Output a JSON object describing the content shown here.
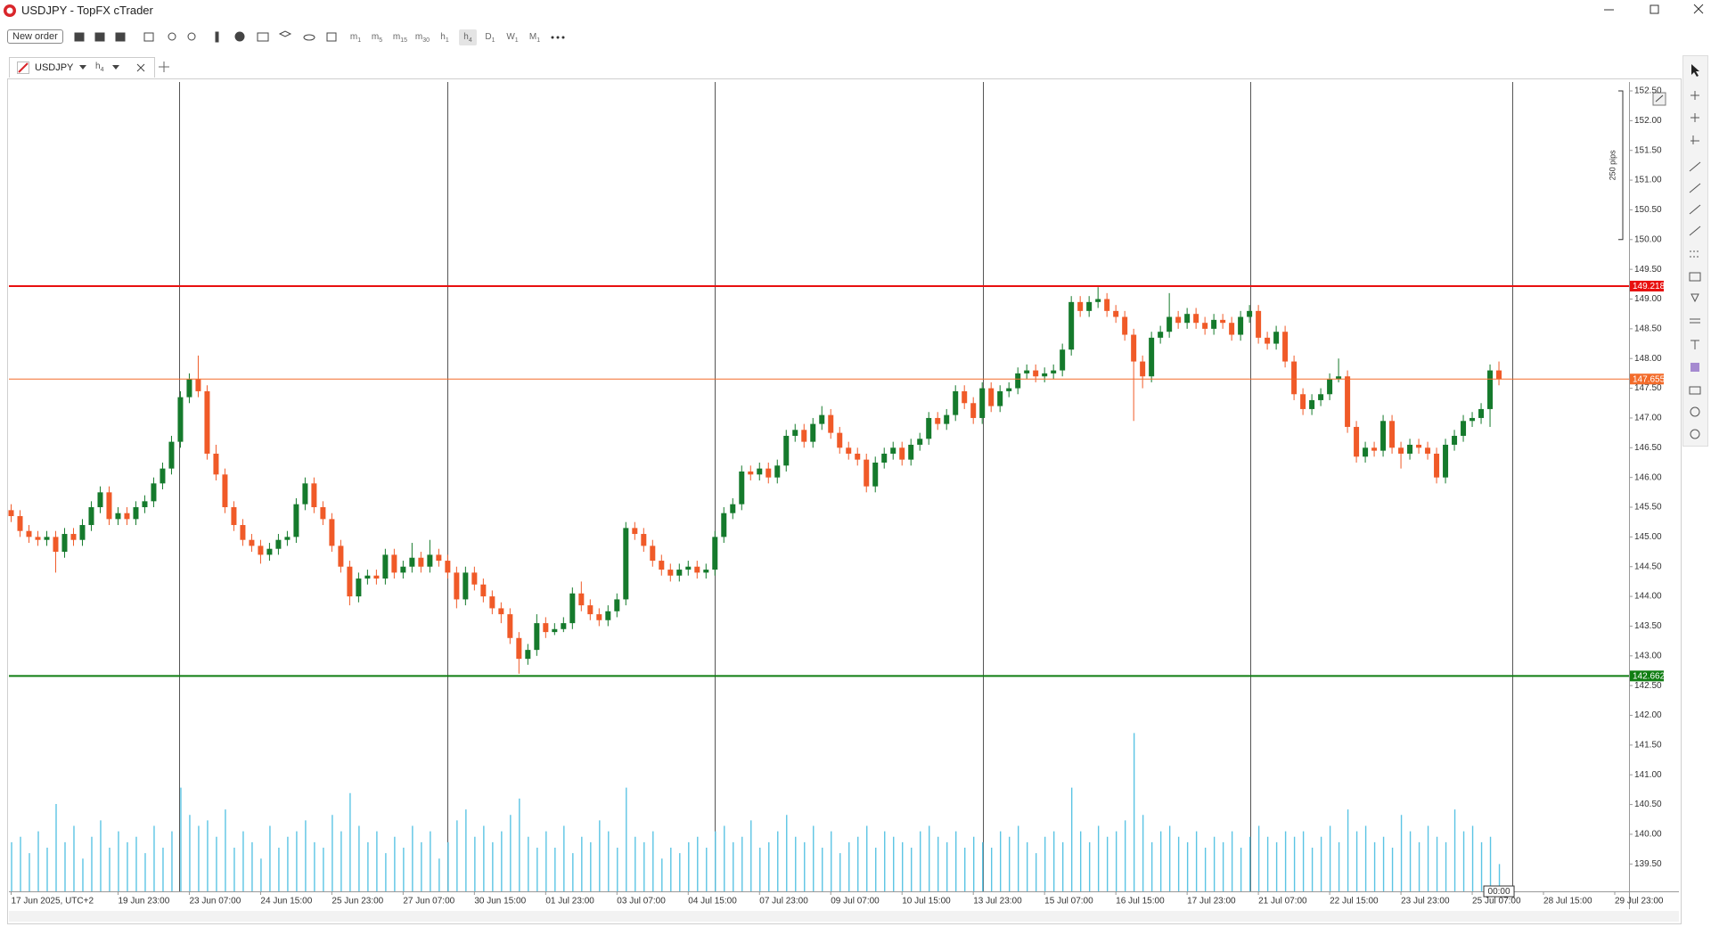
{
  "window": {
    "title": "USDJPY - TopFX cTrader"
  },
  "toolbar": {
    "new_order": "New order",
    "timeframes": [
      {
        "unit": "m",
        "n": "1"
      },
      {
        "unit": "m",
        "n": "5"
      },
      {
        "unit": "m",
        "n": "15"
      },
      {
        "unit": "m",
        "n": "30"
      },
      {
        "unit": "h",
        "n": "1"
      },
      {
        "unit": "h",
        "n": "4"
      },
      {
        "unit": "D",
        "n": "1"
      },
      {
        "unit": "W",
        "n": "1"
      },
      {
        "unit": "M",
        "n": "1"
      }
    ]
  },
  "tab": {
    "symbol": "USDJPY",
    "timeframe": {
      "unit": "h",
      "n": "4"
    }
  },
  "chart_data": {
    "type": "candlestick",
    "bull_color": "#157a2c",
    "bear_color": "#f05a28",
    "volume_color": "#5bc4e4",
    "xlim": [
      -0.25,
      181.6
    ],
    "ylim": [
      139.04,
      152.65
    ],
    "vlim": [
      0,
      160
    ],
    "xticks": [
      {
        "value": 0,
        "label": "17 Jun 2025, UTC+2"
      },
      {
        "value": 12,
        "label": "19 Jun 23:00"
      },
      {
        "value": 20,
        "label": "23 Jun 07:00"
      },
      {
        "value": 28,
        "label": "24 Jun 15:00"
      },
      {
        "value": 36,
        "label": "25 Jun 23:00"
      },
      {
        "value": 44,
        "label": "27 Jun 07:00"
      },
      {
        "value": 52,
        "label": "30 Jun 15:00"
      },
      {
        "value": 60,
        "label": "01 Jul 23:00"
      },
      {
        "value": 68,
        "label": "03 Jul 07:00"
      },
      {
        "value": 76,
        "label": "04 Jul 15:00"
      },
      {
        "value": 84,
        "label": "07 Jul 23:00"
      },
      {
        "value": 92,
        "label": "09 Jul 07:00"
      },
      {
        "value": 100,
        "label": "10 Jul 15:00"
      },
      {
        "value": 108,
        "label": "13 Jul 23:00"
      },
      {
        "value": 116,
        "label": "15 Jul 07:00"
      },
      {
        "value": 124,
        "label": "16 Jul 15:00"
      },
      {
        "value": 132,
        "label": "17 Jul 23:00"
      },
      {
        "value": 140,
        "label": "21 Jul 07:00"
      },
      {
        "value": 148,
        "label": "22 Jul 15:00"
      },
      {
        "value": 156,
        "label": "23 Jul 23:00"
      },
      {
        "value": 164,
        "label": "25 Jul 07:00"
      },
      {
        "value": 172,
        "label": "28 Jul 15:00"
      },
      {
        "value": 180,
        "label": "29 Jul 23:00"
      }
    ],
    "yticks": [
      {
        "value": 139.5,
        "label": "139.50"
      },
      {
        "value": 140,
        "label": "140.00"
      },
      {
        "value": 140.5,
        "label": "140.50"
      },
      {
        "value": 141,
        "label": "141.00"
      },
      {
        "value": 141.5,
        "label": "141.50"
      },
      {
        "value": 142,
        "label": "142.00"
      },
      {
        "value": 142.5,
        "label": "142.50"
      },
      {
        "value": 143,
        "label": "143.00"
      },
      {
        "value": 143.5,
        "label": "143.50"
      },
      {
        "value": 144,
        "label": "144.00"
      },
      {
        "value": 144.5,
        "label": "144.50"
      },
      {
        "value": 145,
        "label": "145.00"
      },
      {
        "value": 145.5,
        "label": "145.50"
      },
      {
        "value": 146,
        "label": "146.00"
      },
      {
        "value": 146.5,
        "label": "146.50"
      },
      {
        "value": 147,
        "label": "147.00"
      },
      {
        "value": 147.5,
        "label": "147.50"
      },
      {
        "value": 148,
        "label": "148.00"
      },
      {
        "value": 148.5,
        "label": "148.50"
      },
      {
        "value": 149,
        "label": "149.00"
      },
      {
        "value": 149.5,
        "label": "149.50"
      },
      {
        "value": 150,
        "label": "150.00"
      },
      {
        "value": 150.5,
        "label": "150.50"
      },
      {
        "value": 151,
        "label": "151.00"
      },
      {
        "value": 151.5,
        "label": "151.50"
      },
      {
        "value": 152,
        "label": "152.00"
      },
      {
        "value": 152.5,
        "label": "152.50"
      }
    ],
    "levels": [
      {
        "price": 149.218,
        "color": "#e8100f",
        "width": 2
      },
      {
        "price": 142.662,
        "color": "#0f7d12",
        "width": 2
      },
      {
        "price": 147.655,
        "color": "#f36b2a",
        "width": 1
      }
    ],
    "ruler": {
      "label": "250 pips",
      "from": 150,
      "to": 152.5
    },
    "countdown": "00:00",
    "ohlc": [
      [
        145.45,
        145.55,
        145.25,
        145.35
      ],
      [
        145.35,
        145.45,
        145.0,
        145.1
      ],
      [
        145.1,
        145.2,
        144.9,
        145.0
      ],
      [
        145.0,
        145.1,
        144.85,
        144.95
      ],
      [
        144.95,
        145.1,
        144.85,
        145.0
      ],
      [
        145.0,
        145.1,
        144.4,
        144.75
      ],
      [
        144.75,
        145.15,
        144.65,
        145.05
      ],
      [
        145.05,
        145.15,
        144.85,
        144.95
      ],
      [
        144.95,
        145.3,
        144.85,
        145.2
      ],
      [
        145.2,
        145.6,
        145.1,
        145.5
      ],
      [
        145.5,
        145.85,
        145.4,
        145.75
      ],
      [
        145.75,
        145.85,
        145.2,
        145.3
      ],
      [
        145.3,
        145.5,
        145.2,
        145.4
      ],
      [
        145.4,
        145.5,
        145.2,
        145.3
      ],
      [
        145.3,
        145.6,
        145.2,
        145.5
      ],
      [
        145.5,
        145.7,
        145.4,
        145.6
      ],
      [
        145.6,
        146.0,
        145.5,
        145.9
      ],
      [
        145.9,
        146.25,
        145.8,
        146.15
      ],
      [
        146.15,
        146.7,
        146.05,
        146.6
      ],
      [
        146.6,
        147.45,
        146.5,
        147.35
      ],
      [
        147.35,
        147.75,
        147.25,
        147.65
      ],
      [
        147.65,
        148.05,
        147.35,
        147.45
      ],
      [
        147.45,
        147.55,
        146.3,
        146.4
      ],
      [
        146.4,
        146.55,
        145.95,
        146.05
      ],
      [
        146.05,
        146.15,
        145.4,
        145.5
      ],
      [
        145.5,
        145.6,
        145.1,
        145.2
      ],
      [
        145.2,
        145.3,
        144.85,
        144.95
      ],
      [
        144.95,
        145.05,
        144.75,
        144.85
      ],
      [
        144.85,
        144.95,
        144.55,
        144.7
      ],
      [
        144.7,
        144.9,
        144.6,
        144.8
      ],
      [
        144.8,
        145.05,
        144.7,
        144.95
      ],
      [
        144.95,
        145.1,
        144.85,
        145.0
      ],
      [
        145.0,
        145.65,
        144.9,
        145.55
      ],
      [
        145.55,
        146.0,
        145.45,
        145.9
      ],
      [
        145.9,
        146.0,
        145.4,
        145.5
      ],
      [
        145.5,
        145.6,
        145.2,
        145.3
      ],
      [
        145.3,
        145.4,
        144.75,
        144.85
      ],
      [
        144.85,
        144.95,
        144.4,
        144.5
      ],
      [
        144.5,
        144.6,
        143.85,
        144.0
      ],
      [
        144.0,
        144.4,
        143.9,
        144.3
      ],
      [
        144.3,
        144.45,
        144.2,
        144.35
      ],
      [
        144.35,
        144.45,
        144.2,
        144.3
      ],
      [
        144.3,
        144.8,
        144.2,
        144.7
      ],
      [
        144.7,
        144.8,
        144.3,
        144.4
      ],
      [
        144.4,
        144.6,
        144.3,
        144.5
      ],
      [
        144.5,
        144.9,
        144.4,
        144.65
      ],
      [
        144.65,
        144.75,
        144.4,
        144.5
      ],
      [
        144.5,
        144.95,
        144.4,
        144.7
      ],
      [
        144.7,
        144.8,
        144.5,
        144.6
      ],
      [
        144.6,
        144.7,
        144.3,
        144.4
      ],
      [
        144.4,
        144.5,
        143.8,
        143.95
      ],
      [
        143.95,
        144.5,
        143.85,
        144.4
      ],
      [
        144.4,
        144.5,
        144.1,
        144.2
      ],
      [
        144.2,
        144.3,
        143.9,
        144.0
      ],
      [
        144.0,
        144.1,
        143.7,
        143.8
      ],
      [
        143.8,
        143.9,
        143.55,
        143.7
      ],
      [
        143.7,
        143.8,
        143.2,
        143.3
      ],
      [
        143.3,
        143.4,
        142.7,
        142.95
      ],
      [
        142.95,
        143.2,
        142.85,
        143.1
      ],
      [
        143.1,
        143.7,
        143.0,
        143.55
      ],
      [
        143.55,
        143.65,
        143.3,
        143.4
      ],
      [
        143.4,
        143.55,
        143.35,
        143.45
      ],
      [
        143.45,
        143.65,
        143.4,
        143.55
      ],
      [
        143.55,
        144.15,
        143.45,
        144.05
      ],
      [
        144.05,
        144.25,
        143.75,
        143.85
      ],
      [
        143.85,
        143.95,
        143.6,
        143.7
      ],
      [
        143.7,
        143.8,
        143.5,
        143.6
      ],
      [
        143.6,
        143.85,
        143.5,
        143.75
      ],
      [
        143.75,
        144.05,
        143.65,
        143.95
      ],
      [
        143.95,
        145.25,
        143.85,
        145.15
      ],
      [
        145.15,
        145.25,
        144.95,
        145.05
      ],
      [
        145.05,
        145.15,
        144.75,
        144.85
      ],
      [
        144.85,
        144.95,
        144.5,
        144.6
      ],
      [
        144.6,
        144.7,
        144.35,
        144.45
      ],
      [
        144.45,
        144.55,
        144.25,
        144.35
      ],
      [
        144.35,
        144.55,
        144.25,
        144.45
      ],
      [
        144.45,
        144.6,
        144.35,
        144.5
      ],
      [
        144.5,
        144.6,
        144.3,
        144.4
      ],
      [
        144.4,
        144.55,
        144.3,
        144.45
      ],
      [
        144.45,
        145.1,
        144.35,
        145.0
      ],
      [
        145.0,
        145.5,
        144.9,
        145.4
      ],
      [
        145.4,
        145.65,
        145.3,
        145.55
      ],
      [
        145.55,
        146.2,
        145.45,
        146.1
      ],
      [
        146.1,
        146.2,
        145.95,
        146.05
      ],
      [
        146.05,
        146.25,
        145.95,
        146.15
      ],
      [
        146.15,
        146.25,
        145.9,
        146.0
      ],
      [
        146.0,
        146.3,
        145.9,
        146.2
      ],
      [
        146.2,
        146.8,
        146.1,
        146.7
      ],
      [
        146.7,
        146.9,
        146.6,
        146.8
      ],
      [
        146.8,
        146.9,
        146.5,
        146.6
      ],
      [
        146.6,
        147.0,
        146.5,
        146.9
      ],
      [
        146.9,
        147.2,
        146.8,
        147.05
      ],
      [
        147.05,
        147.15,
        146.65,
        146.75
      ],
      [
        146.75,
        146.85,
        146.4,
        146.5
      ],
      [
        146.5,
        146.6,
        146.3,
        146.4
      ],
      [
        146.4,
        146.5,
        146.2,
        146.3
      ],
      [
        146.3,
        146.4,
        145.75,
        145.85
      ],
      [
        145.85,
        146.35,
        145.75,
        146.25
      ],
      [
        146.25,
        146.5,
        146.15,
        146.4
      ],
      [
        146.4,
        146.6,
        146.3,
        146.5
      ],
      [
        146.5,
        146.6,
        146.2,
        146.3
      ],
      [
        146.3,
        146.65,
        146.2,
        146.55
      ],
      [
        146.55,
        146.75,
        146.45,
        146.65
      ],
      [
        146.65,
        147.1,
        146.55,
        147.0
      ],
      [
        147.0,
        147.1,
        146.8,
        146.9
      ],
      [
        146.9,
        147.15,
        146.8,
        147.05
      ],
      [
        147.05,
        147.55,
        146.95,
        147.45
      ],
      [
        147.45,
        147.55,
        147.15,
        147.25
      ],
      [
        147.25,
        147.35,
        146.9,
        147.0
      ],
      [
        147.0,
        147.6,
        146.9,
        147.5
      ],
      [
        147.5,
        147.6,
        147.1,
        147.2
      ],
      [
        147.2,
        147.55,
        147.1,
        147.45
      ],
      [
        147.45,
        147.6,
        147.35,
        147.5
      ],
      [
        147.5,
        147.85,
        147.4,
        147.75
      ],
      [
        147.75,
        147.9,
        147.65,
        147.8
      ],
      [
        147.8,
        147.9,
        147.6,
        147.7
      ],
      [
        147.7,
        147.85,
        147.6,
        147.75
      ],
      [
        147.75,
        147.9,
        147.65,
        147.8
      ],
      [
        147.8,
        148.25,
        147.7,
        148.15
      ],
      [
        148.15,
        149.05,
        148.05,
        148.95
      ],
      [
        148.95,
        149.05,
        148.7,
        148.8
      ],
      [
        148.8,
        149.05,
        148.7,
        148.95
      ],
      [
        148.95,
        149.2,
        148.85,
        149.0
      ],
      [
        149.0,
        149.1,
        148.7,
        148.8
      ],
      [
        148.8,
        148.9,
        148.6,
        148.7
      ],
      [
        148.7,
        148.8,
        148.3,
        148.4
      ],
      [
        148.4,
        148.5,
        146.95,
        147.95
      ],
      [
        147.95,
        148.05,
        147.5,
        147.7
      ],
      [
        147.7,
        148.45,
        147.6,
        148.35
      ],
      [
        148.35,
        148.55,
        148.25,
        148.45
      ],
      [
        148.45,
        149.1,
        148.35,
        148.7
      ],
      [
        148.7,
        148.8,
        148.5,
        148.6
      ],
      [
        148.6,
        148.85,
        148.5,
        148.75
      ],
      [
        148.75,
        148.85,
        148.5,
        148.6
      ],
      [
        148.6,
        148.7,
        148.4,
        148.5
      ],
      [
        148.5,
        148.75,
        148.4,
        148.65
      ],
      [
        148.65,
        148.75,
        148.5,
        148.6
      ],
      [
        148.6,
        148.7,
        148.3,
        148.4
      ],
      [
        148.4,
        148.8,
        148.3,
        148.7
      ],
      [
        148.7,
        148.9,
        148.6,
        148.8
      ],
      [
        148.8,
        148.9,
        148.25,
        148.35
      ],
      [
        148.35,
        148.45,
        148.15,
        148.25
      ],
      [
        148.25,
        148.55,
        148.15,
        148.45
      ],
      [
        148.45,
        148.55,
        147.85,
        147.95
      ],
      [
        147.95,
        148.05,
        147.3,
        147.4
      ],
      [
        147.4,
        147.5,
        147.05,
        147.15
      ],
      [
        147.15,
        147.4,
        147.05,
        147.3
      ],
      [
        147.3,
        147.5,
        147.2,
        147.4
      ],
      [
        147.4,
        147.75,
        147.3,
        147.65
      ],
      [
        147.65,
        148.0,
        147.6,
        147.7
      ],
      [
        147.7,
        147.8,
        146.75,
        146.85
      ],
      [
        146.85,
        146.95,
        146.25,
        146.35
      ],
      [
        146.35,
        146.6,
        146.25,
        146.5
      ],
      [
        146.5,
        146.6,
        146.35,
        146.45
      ],
      [
        146.45,
        147.05,
        146.35,
        146.95
      ],
      [
        146.95,
        147.05,
        146.4,
        146.5
      ],
      [
        146.5,
        146.6,
        146.15,
        146.4
      ],
      [
        146.4,
        146.65,
        146.3,
        146.55
      ],
      [
        146.55,
        146.65,
        146.4,
        146.5
      ],
      [
        146.5,
        146.6,
        146.3,
        146.4
      ],
      [
        146.4,
        146.5,
        145.9,
        146.0
      ],
      [
        146.0,
        146.65,
        145.9,
        146.55
      ],
      [
        146.55,
        146.8,
        146.45,
        146.7
      ],
      [
        146.7,
        147.05,
        146.6,
        146.95
      ],
      [
        146.95,
        147.1,
        146.85,
        147.0
      ],
      [
        147.0,
        147.25,
        146.9,
        147.15
      ],
      [
        147.15,
        147.9,
        146.85,
        147.8
      ],
      [
        147.8,
        147.95,
        147.55,
        147.65
      ]
    ],
    "volume": [
      45,
      50,
      35,
      55,
      40,
      80,
      45,
      60,
      30,
      50,
      65,
      40,
      55,
      45,
      50,
      35,
      60,
      40,
      55,
      95,
      70,
      60,
      65,
      50,
      75,
      40,
      55,
      45,
      30,
      60,
      40,
      50,
      55,
      65,
      45,
      40,
      70,
      55,
      90,
      60,
      45,
      55,
      35,
      50,
      40,
      60,
      45,
      55,
      30,
      45,
      65,
      75,
      50,
      60,
      45,
      55,
      70,
      85,
      50,
      40,
      55,
      40,
      60,
      35,
      50,
      45,
      65,
      55,
      40,
      95,
      50,
      45,
      55,
      30,
      40,
      35,
      45,
      50,
      40,
      55,
      60,
      45,
      50,
      65,
      40,
      45,
      55,
      70,
      50,
      45,
      60,
      40,
      55,
      35,
      45,
      50,
      60,
      40,
      55,
      50,
      45,
      40,
      55,
      60,
      50,
      45,
      55,
      40,
      50,
      45,
      40,
      55,
      50,
      60,
      45,
      35,
      50,
      55,
      45,
      95,
      55,
      45,
      60,
      50,
      55,
      65,
      145,
      70,
      45,
      55,
      60,
      50,
      45,
      55,
      40,
      50,
      45,
      55,
      40,
      50,
      60,
      50,
      45,
      55,
      50,
      55,
      40,
      50,
      60,
      45,
      75,
      55,
      60,
      45,
      50,
      40,
      70,
      55,
      45,
      60,
      50,
      45,
      75,
      55,
      60,
      45,
      50,
      25
    ]
  }
}
